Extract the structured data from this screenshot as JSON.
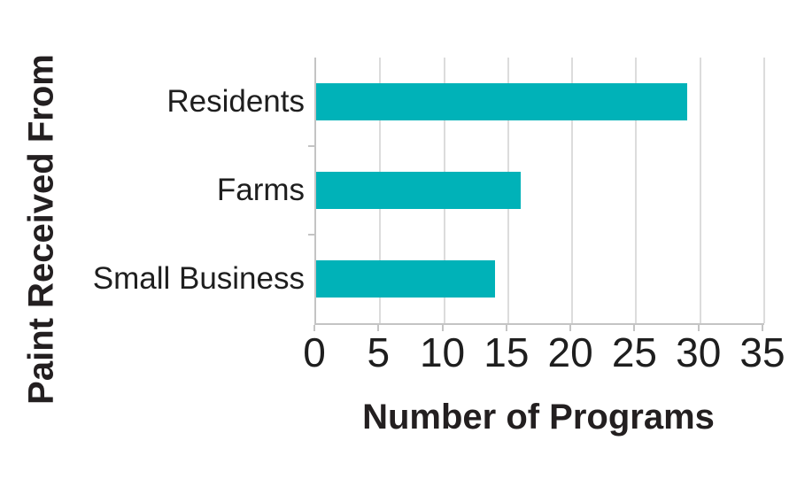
{
  "chart_data": {
    "type": "bar",
    "orientation": "horizontal",
    "categories": [
      "Residents",
      "Farms",
      "Small Business"
    ],
    "values": [
      29,
      16,
      14
    ],
    "xlabel": "Number of Programs",
    "ylabel": "Paint Received From",
    "xlim": [
      0,
      35
    ],
    "xticks": [
      0,
      5,
      10,
      15,
      20,
      25,
      30,
      35
    ],
    "grid": true,
    "legend_position": "none",
    "bar_color": "#00b2b8"
  },
  "colors": {
    "bar": "#00b2b8",
    "gridline": "#dcdcdc",
    "axis_line": "#c4c4c4",
    "tick_text": "#1e1e1e",
    "title_text": "#231f20",
    "background": "#ffffff"
  }
}
